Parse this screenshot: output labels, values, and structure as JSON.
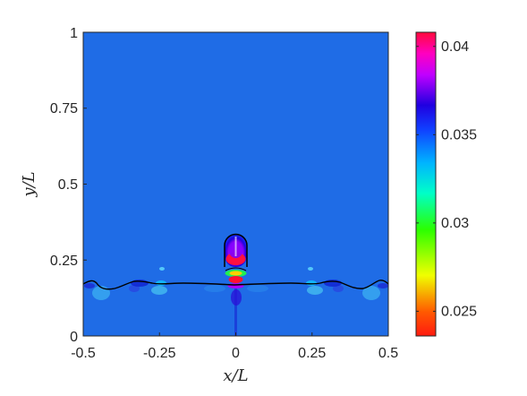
{
  "chart_data": {
    "type": "heatmap",
    "title": "",
    "xlabel": "x/L",
    "ylabel": "y/L",
    "xlim": [
      -0.5,
      0.5
    ],
    "ylim": [
      0,
      1
    ],
    "x_ticks": [
      "-0.5",
      "-0.25",
      "0",
      "0.25",
      "0.5"
    ],
    "y_ticks": [
      "0",
      "0.25",
      "0.5",
      "0.75",
      "1"
    ],
    "colorbar": {
      "range": [
        0.0236,
        0.0408
      ],
      "ticks": [
        "0.025",
        "0.03",
        "0.035",
        "0.04"
      ],
      "tick_values": [
        0.025,
        0.03,
        0.035,
        0.04
      ],
      "colormap": "hsv (red-yellow-green-cyan-blue-magenta-red)"
    },
    "background_value": 0.034,
    "features": {
      "interface_y": 0.165,
      "bubble_center_x": 0,
      "bubble_top_y": 0.335,
      "bubble_radius": 0.05,
      "bubble_max_value": 0.0405,
      "wave_crest_x": [
        -0.335,
        -0.25,
        0.25,
        0.335
      ]
    }
  },
  "colors": {
    "background_field": "#1f6ce6",
    "axis": "#262626",
    "interface_line": "#000000"
  }
}
